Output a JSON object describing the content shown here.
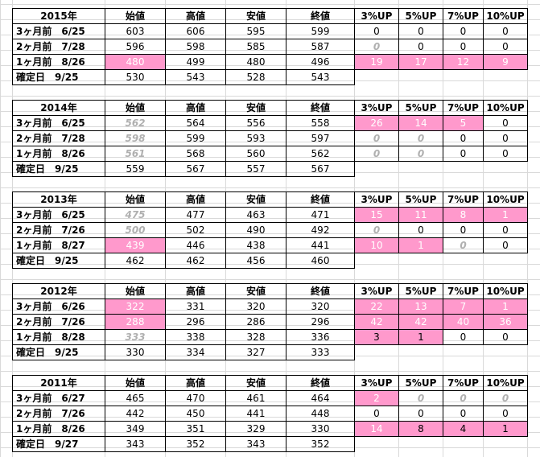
{
  "header": [
    "始値",
    "高値",
    "安値",
    "終値",
    "3%UP",
    "5%UP",
    "7%UP",
    "10%UP"
  ],
  "tables": [
    {
      "year": "2015年",
      "rows": [
        {
          "label": "3ヶ月前　6/25",
          "open": "603",
          "high": "606",
          "low": "595",
          "close": "599",
          "up": [
            "0",
            "0",
            "0",
            "0"
          ],
          "open_style": "",
          "up_style": [
            "",
            "",
            "",
            ""
          ]
        },
        {
          "label": "2ヶ月前　7/28",
          "open": "596",
          "high": "598",
          "low": "585",
          "close": "587",
          "up": [
            "0",
            "0",
            "0",
            "0"
          ],
          "open_style": "",
          "up_style": [
            "gray",
            "",
            "",
            ""
          ]
        },
        {
          "label": "1ヶ月前　8/26",
          "open": "480",
          "high": "499",
          "low": "480",
          "close": "496",
          "up": [
            "19",
            "17",
            "12",
            "9"
          ],
          "open_style": "pink",
          "up_style": [
            "pink",
            "pink",
            "pink",
            "pink"
          ]
        },
        {
          "label": "確定日　9/25",
          "open": "530",
          "high": "543",
          "low": "528",
          "close": "543",
          "up": [
            "",
            "",
            "",
            ""
          ],
          "open_style": "",
          "up_style": [
            "blank",
            "blank",
            "blank",
            "blank"
          ]
        }
      ]
    },
    {
      "year": "2014年",
      "rows": [
        {
          "label": "3ヶ月前　6/25",
          "open": "562",
          "high": "564",
          "low": "556",
          "close": "558",
          "up": [
            "26",
            "14",
            "5",
            "0"
          ],
          "open_style": "gray",
          "up_style": [
            "pink",
            "pink",
            "pink",
            ""
          ]
        },
        {
          "label": "2ヶ月前　7/28",
          "open": "598",
          "high": "599",
          "low": "593",
          "close": "597",
          "up": [
            "0",
            "0",
            "0",
            "0"
          ],
          "open_style": "gray",
          "up_style": [
            "gray",
            "gray",
            "",
            ""
          ]
        },
        {
          "label": "1ヶ月前　8/26",
          "open": "561",
          "high": "568",
          "low": "560",
          "close": "562",
          "up": [
            "0",
            "0",
            "0",
            "0"
          ],
          "open_style": "gray",
          "up_style": [
            "gray",
            "gray",
            "",
            ""
          ]
        },
        {
          "label": "確定日　9/25",
          "open": "559",
          "high": "567",
          "low": "557",
          "close": "567",
          "up": [
            "",
            "",
            "",
            ""
          ],
          "open_style": "",
          "up_style": [
            "blank",
            "blank",
            "blank",
            "blank"
          ]
        }
      ]
    },
    {
      "year": "2013年",
      "rows": [
        {
          "label": "3ヶ月前　6/25",
          "open": "475",
          "high": "477",
          "low": "463",
          "close": "471",
          "up": [
            "15",
            "11",
            "8",
            "1"
          ],
          "open_style": "gray",
          "up_style": [
            "pink",
            "pink",
            "pink",
            "pink"
          ]
        },
        {
          "label": "2ヶ月前　7/26",
          "open": "500",
          "high": "502",
          "low": "490",
          "close": "492",
          "up": [
            "0",
            "0",
            "0",
            "0"
          ],
          "open_style": "gray",
          "up_style": [
            "gray",
            "",
            "",
            ""
          ]
        },
        {
          "label": "1ヶ月前　8/27",
          "open": "439",
          "high": "446",
          "low": "438",
          "close": "441",
          "up": [
            "10",
            "1",
            "0",
            "0"
          ],
          "open_style": "pink",
          "up_style": [
            "pink",
            "pink",
            "gray",
            ""
          ]
        },
        {
          "label": "確定日　9/25",
          "open": "462",
          "high": "462",
          "low": "456",
          "close": "460",
          "up": [
            "",
            "",
            "",
            ""
          ],
          "open_style": "",
          "up_style": [
            "blank",
            "blank",
            "blank",
            "blank"
          ]
        }
      ]
    },
    {
      "year": "2012年",
      "rows": [
        {
          "label": "3ヶ月前　6/26",
          "open": "322",
          "high": "331",
          "low": "320",
          "close": "320",
          "up": [
            "22",
            "13",
            "7",
            "1"
          ],
          "open_style": "pink",
          "up_style": [
            "pink",
            "pink",
            "pink",
            "pink"
          ]
        },
        {
          "label": "2ヶ月前　7/26",
          "open": "288",
          "high": "296",
          "low": "286",
          "close": "296",
          "up": [
            "42",
            "42",
            "40",
            "36"
          ],
          "open_style": "pink",
          "up_style": [
            "pink",
            "pink",
            "pink",
            "pink"
          ]
        },
        {
          "label": "1ヶ月前　8/28",
          "open": "333",
          "high": "338",
          "low": "328",
          "close": "336",
          "up": [
            "3",
            "1",
            "0",
            "0"
          ],
          "open_style": "gray",
          "up_style": [
            "pink-dark",
            "pink-dark",
            "",
            ""
          ]
        },
        {
          "label": "確定日　9/25",
          "open": "330",
          "high": "334",
          "low": "327",
          "close": "333",
          "up": [
            "",
            "",
            "",
            ""
          ],
          "open_style": "",
          "up_style": [
            "blank",
            "blank",
            "blank",
            "blank"
          ]
        }
      ]
    },
    {
      "year": "2011年",
      "rows": [
        {
          "label": "3ヶ月前　6/27",
          "open": "465",
          "high": "470",
          "low": "461",
          "close": "464",
          "up": [
            "2",
            "0",
            "0",
            "0"
          ],
          "open_style": "",
          "up_style": [
            "pink",
            "gray",
            "gray",
            "gray"
          ]
        },
        {
          "label": "2ヶ月前　7/26",
          "open": "442",
          "high": "450",
          "low": "441",
          "close": "448",
          "up": [
            "0",
            "0",
            "0",
            "0"
          ],
          "open_style": "",
          "up_style": [
            "",
            "",
            "",
            ""
          ]
        },
        {
          "label": "1ヶ月前　8/26",
          "open": "349",
          "high": "351",
          "low": "329",
          "close": "330",
          "up": [
            "14",
            "8",
            "4",
            "1"
          ],
          "open_style": "",
          "up_style": [
            "pink",
            "pink-dark",
            "pink-dark",
            "pink-dark"
          ]
        },
        {
          "label": "確定日　9/27",
          "open": "343",
          "high": "352",
          "low": "343",
          "close": "352",
          "up": [
            "",
            "",
            "",
            ""
          ],
          "open_style": "",
          "up_style": [
            "blank",
            "blank",
            "blank",
            "blank"
          ]
        }
      ]
    }
  ],
  "colors": {
    "highlight": "#ff99cc",
    "grayed": "#b0b0b0",
    "gridline": "#d9d9d9"
  }
}
